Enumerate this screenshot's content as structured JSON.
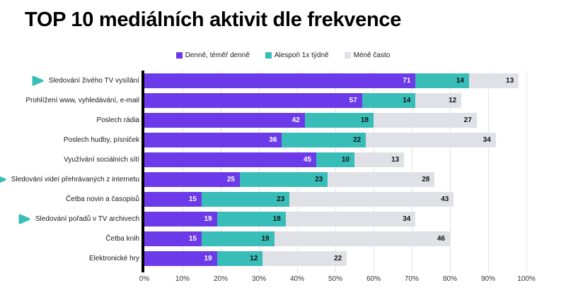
{
  "title": "TOP 10 mediálních aktivit dle frekvence",
  "legend": [
    {
      "label": "Denně, téměř denně",
      "color": "#6c3ae8"
    },
    {
      "label": "Alespoň 1x týdně",
      "color": "#39bdb8"
    },
    {
      "label": "Méně často",
      "color": "#e0e1e7"
    }
  ],
  "colors": {
    "accent_purple": "#6c3ae8",
    "accent_teal": "#39bdb8",
    "neutral_gray": "#e0e1e7",
    "axis_black": "#000000",
    "marker_arrow": "#39bdb8"
  },
  "chart_data": {
    "type": "bar",
    "orientation": "horizontal",
    "stacked": true,
    "title": "TOP 10 mediálních aktivit dle frekvence",
    "categories": [
      "Sledování živého TV vysílání",
      "Prohlížení www, vyhledávání, e-mail",
      "Poslech rádia",
      "Poslech hudby, písniček",
      "Využívání sociálních sítí",
      "Sledování videí přehrávaných z internetu",
      "Četba novin a časopisů",
      "Sledování pořadů v TV archivech",
      "Četba knih",
      "Elektronické hry"
    ],
    "marked_category_indexes": [
      0,
      5,
      7
    ],
    "series": [
      {
        "name": "Denně, téměř denně",
        "color": "#6c3ae8",
        "label_color": "#ffffff",
        "values": [
          71,
          57,
          42,
          36,
          45,
          25,
          15,
          19,
          15,
          19
        ]
      },
      {
        "name": "Alespoň 1x týdně",
        "color": "#39bdb8",
        "label_color": "#111111",
        "values": [
          14,
          14,
          18,
          22,
          10,
          23,
          23,
          18,
          19,
          12
        ]
      },
      {
        "name": "Méně často",
        "color": "#e0e1e7",
        "label_color": "#111111",
        "values": [
          13,
          12,
          27,
          34,
          13,
          28,
          43,
          34,
          46,
          22
        ]
      }
    ],
    "x_ticks": [
      "0%",
      "10%",
      "20%",
      "30%",
      "40%",
      "50%",
      "60%",
      "70%",
      "80%",
      "90%",
      "100%"
    ],
    "xlim": [
      0,
      100
    ],
    "xlabel": "",
    "ylabel": "",
    "grid": true,
    "legend_position": "top"
  }
}
